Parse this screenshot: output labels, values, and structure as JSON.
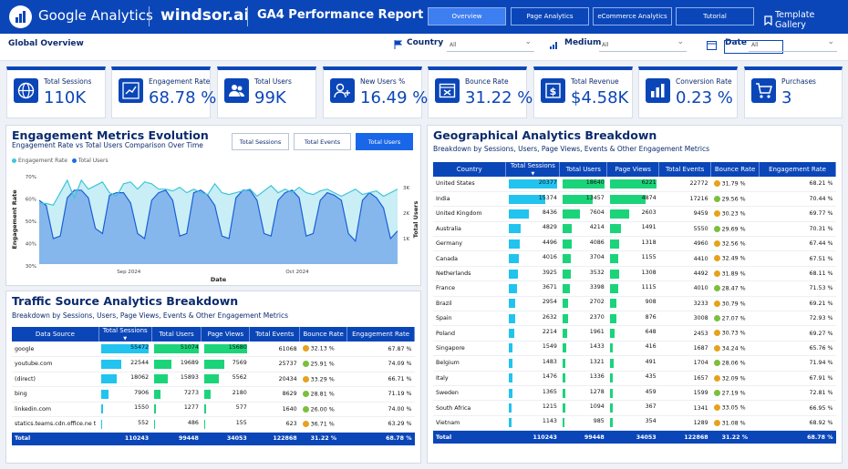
{
  "header": {
    "ga_logo": "Google Analytics",
    "windsor_logo": "windsor.ai",
    "title": "GA4 Performance Report",
    "tabs": [
      "Overview",
      "Page Analytics",
      "eCommerce Analytics",
      "Tutorial"
    ],
    "template_gallery": "Template Gallery"
  },
  "filters": {
    "section": "Global Overview",
    "country_label": "Country",
    "country_value": "All",
    "medium_label": "Medium",
    "medium_value": "All",
    "date_label": "Date",
    "date_value": "All"
  },
  "kpis": [
    {
      "label": "Total Sessions",
      "value": "110K",
      "icon": "globe-icon"
    },
    {
      "label": "Engagement Rate",
      "value": "68.78 %",
      "icon": "trend-chart-icon"
    },
    {
      "label": "Total Users",
      "value": "99K",
      "icon": "users-icon"
    },
    {
      "label": "New Users %",
      "value": "16.49 %",
      "icon": "user-add-icon"
    },
    {
      "label": "Bounce Rate",
      "value": "31.22 %",
      "icon": "bounce-icon"
    },
    {
      "label": "Total Revenue",
      "value": "$4.58K",
      "icon": "dollar-icon"
    },
    {
      "label": "Conversion Rate",
      "value": "0.23 %",
      "icon": "bar-chart-icon"
    },
    {
      "label": "Purchases",
      "value": "3",
      "icon": "cart-icon"
    }
  ],
  "engagement": {
    "title": "Engagement Metrics Evolution",
    "subtitle": "Engagement Rate vs Total Users Comparison Over Time",
    "tabs": [
      "Total Sessions",
      "Total Events",
      "Total Users"
    ],
    "active_tab": 2
  },
  "chart_data": {
    "type": "area",
    "series": [
      {
        "name": "Engagement Rate",
        "color": "#3ec6d8"
      },
      {
        "name": "Total Users",
        "color": "#1a6ee8"
      }
    ],
    "x_ticks": [
      "Sep 2024",
      "Oct 2024"
    ],
    "xlabel": "Date",
    "ylabel_left": "Engagement Rate",
    "ylabel_right": "Total Users",
    "left_ticks": [
      "70%",
      "60%",
      "50%",
      "40%",
      "30%"
    ],
    "right_ticks": [
      "3K",
      "2K",
      "1K"
    ],
    "engagement_rate": [
      64,
      64,
      63,
      70,
      77,
      67,
      77,
      72,
      74,
      76,
      70,
      68,
      75,
      76,
      72,
      76,
      75,
      72,
      72,
      71,
      73,
      70,
      72,
      70,
      69,
      75,
      70,
      69,
      70,
      71,
      72,
      68,
      71,
      74,
      70,
      72,
      70,
      73,
      70,
      69,
      71,
      72,
      70,
      68,
      70,
      72,
      69,
      70,
      71,
      68,
      70,
      72
    ],
    "total_users": [
      2.5,
      2.3,
      1.0,
      1.1,
      2.6,
      2.9,
      2.9,
      2.6,
      1.4,
      1.2,
      2.7,
      2.8,
      2.8,
      2.4,
      1.2,
      1.0,
      2.5,
      2.8,
      2.9,
      2.5,
      1.1,
      1.2,
      2.8,
      2.9,
      2.7,
      2.3,
      1.1,
      1.0,
      2.6,
      2.9,
      2.9,
      2.5,
      1.2,
      1.1,
      2.5,
      2.8,
      2.9,
      2.6,
      1.1,
      1.2,
      2.5,
      2.8,
      2.7,
      2.5,
      1.2,
      0.9,
      2.5,
      2.8,
      2.6,
      2.2,
      1.0,
      1.3
    ],
    "y_left_range": [
      30,
      80
    ],
    "y_right_range": [
      0,
      3.5
    ]
  },
  "traffic": {
    "title": "Traffic Source Analytics Breakdown",
    "subtitle": "Breakdown by Sessions, Users, Page Views, Events & Other Engagement Metrics",
    "headers": [
      "Data Source",
      "Total Sessions",
      "Total Users",
      "Page Views",
      "Total Events",
      "Bounce Rate",
      "Engagement Rate"
    ],
    "rows": [
      [
        "google",
        "55472",
        "51074",
        "15680",
        "61068",
        "32.13 %",
        "67.87 %"
      ],
      [
        "youtube.com",
        "22544",
        "19689",
        "7569",
        "25737",
        "25.91 %",
        "74.09 %"
      ],
      [
        "(direct)",
        "18062",
        "15893",
        "5562",
        "20434",
        "33.29 %",
        "66.71 %"
      ],
      [
        "bing",
        "7906",
        "7273",
        "2180",
        "8629",
        "28.81 %",
        "71.19 %"
      ],
      [
        "linkedin.com",
        "1550",
        "1277",
        "577",
        "1640",
        "26.00 %",
        "74.00 %"
      ],
      [
        "statics.teams.cdn.office.ne t",
        "552",
        "486",
        "155",
        "623",
        "36.71 %",
        "63.29 %"
      ]
    ],
    "total": [
      "Total",
      "110243",
      "99448",
      "34053",
      "122868",
      "31.22 %",
      "68.78 %"
    ]
  },
  "geo": {
    "title": "Geographical Analytics Breakdown",
    "subtitle": "Breakdown by Sessions, Users, Page Views, Events & Other Engagement Metrics",
    "headers": [
      "Country",
      "Total Sessions",
      "Total Users",
      "Page Views",
      "Total Events",
      "Bounce Rate",
      "Engagement Rate"
    ],
    "rows": [
      [
        "United States",
        "20377",
        "18640",
        "6221",
        "22772",
        "31.79 %",
        "68.21 %"
      ],
      [
        "India",
        "15374",
        "13457",
        "4874",
        "17216",
        "29.56 %",
        "70.44 %"
      ],
      [
        "United Kingdom",
        "8436",
        "7604",
        "2603",
        "9459",
        "30.23 %",
        "69.77 %"
      ],
      [
        "Australia",
        "4829",
        "4214",
        "1491",
        "5550",
        "29.69 %",
        "70.31 %"
      ],
      [
        "Germany",
        "4496",
        "4086",
        "1318",
        "4960",
        "32.56 %",
        "67.44 %"
      ],
      [
        "Canada",
        "4016",
        "3704",
        "1155",
        "4410",
        "32.49 %",
        "67.51 %"
      ],
      [
        "Netherlands",
        "3925",
        "3532",
        "1308",
        "4492",
        "31.89 %",
        "68.11 %"
      ],
      [
        "France",
        "3671",
        "3398",
        "1115",
        "4010",
        "28.47 %",
        "71.53 %"
      ],
      [
        "Brazil",
        "2954",
        "2702",
        "908",
        "3233",
        "30.79 %",
        "69.21 %"
      ],
      [
        "Spain",
        "2632",
        "2370",
        "876",
        "3008",
        "27.07 %",
        "72.93 %"
      ],
      [
        "Poland",
        "2214",
        "1961",
        "648",
        "2453",
        "30.73 %",
        "69.27 %"
      ],
      [
        "Singapore",
        "1549",
        "1433",
        "416",
        "1687",
        "34.24 %",
        "65.76 %"
      ],
      [
        "Belgium",
        "1483",
        "1321",
        "491",
        "1704",
        "28.06 %",
        "71.94 %"
      ],
      [
        "Italy",
        "1476",
        "1336",
        "435",
        "1657",
        "32.09 %",
        "67.91 %"
      ],
      [
        "Sweden",
        "1365",
        "1278",
        "459",
        "1599",
        "27.19 %",
        "72.81 %"
      ],
      [
        "South Africa",
        "1215",
        "1094",
        "367",
        "1341",
        "33.05 %",
        "66.95 %"
      ],
      [
        "Vietnam",
        "1143",
        "985",
        "354",
        "1289",
        "31.08 %",
        "68.92 %"
      ]
    ],
    "total": [
      "Total",
      "110243",
      "99448",
      "34053",
      "122868",
      "31.22 %",
      "68.78 %"
    ]
  }
}
